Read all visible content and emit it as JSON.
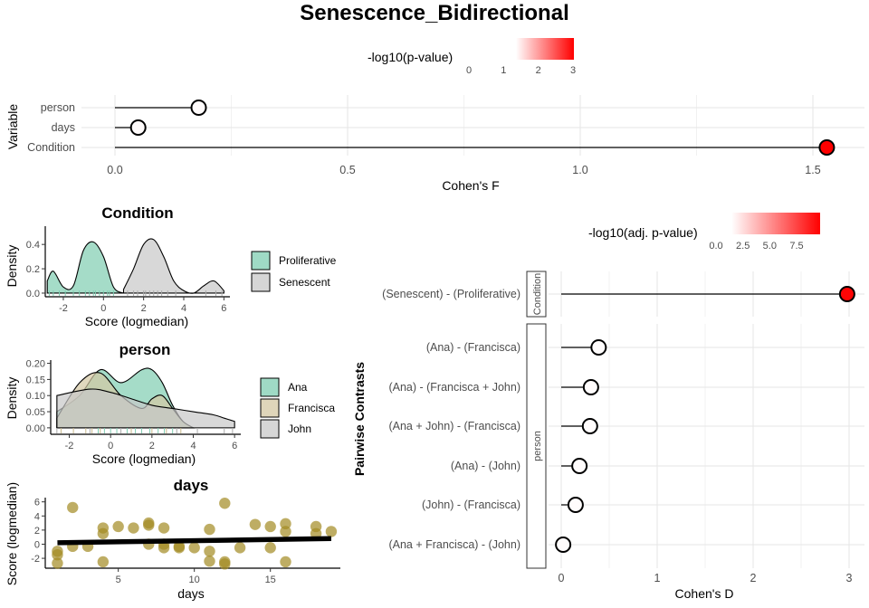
{
  "title": "Senescence_Bidirectional",
  "colors": {
    "sig_low": "#ffffff",
    "sig_high": "#ff0000",
    "fill_a": "#7fcdb1",
    "fill_b": "#c8c8c8",
    "fill_c": "#d4c7a3",
    "points": "#a28a22"
  },
  "anova_panel": {
    "ylabel": "Variable",
    "xlabel": "Cohen's F",
    "legend_title": "-log10(p-value)",
    "legend_ticks": [
      "0",
      "1",
      "2",
      "3"
    ],
    "x_ticks": [
      "0.0",
      "0.5",
      "1.0",
      "1.5"
    ],
    "xlim": [
      -0.07,
      1.58
    ],
    "sig_range": [
      0,
      3
    ],
    "chart_data": {
      "type": "lollipop",
      "categories": [
        "person",
        "days",
        "Condition"
      ],
      "values": [
        0.18,
        0.05,
        1.53
      ],
      "neg_log10_p": [
        0.05,
        0.05,
        3.0
      ]
    }
  },
  "density_condition": {
    "title": "Condition",
    "xlabel": "Score (logmedian)",
    "ylabel": "Density",
    "x_ticks": [
      "-2",
      "0",
      "2",
      "4",
      "6"
    ],
    "y_ticks": [
      "0.0",
      "0.2",
      "0.4"
    ],
    "legend": [
      "Proliferative",
      "Senescent"
    ],
    "chart_data": {
      "type": "area",
      "x": [
        -2.8,
        -2.5,
        -2.0,
        -1.5,
        -1.0,
        -0.5,
        0.0,
        0.5,
        1.0
      ],
      "series": [
        {
          "name": "Proliferative",
          "x": [
            -2.8,
            -2.5,
            -2.0,
            -1.5,
            -1.0,
            -0.5,
            0.0,
            0.5,
            1.0
          ],
          "values": [
            0.1,
            0.18,
            0.05,
            0.06,
            0.35,
            0.42,
            0.3,
            0.05,
            0.0
          ]
        },
        {
          "name": "Senescent",
          "x": [
            1.0,
            1.5,
            2.0,
            2.5,
            3.0,
            3.5,
            4.0,
            4.5,
            5.0,
            5.5,
            6.0
          ],
          "values": [
            0.03,
            0.2,
            0.4,
            0.44,
            0.3,
            0.1,
            0.02,
            0.0,
            0.06,
            0.1,
            0.02
          ]
        }
      ],
      "ylim": [
        -0.03,
        0.55
      ],
      "xlim": [
        -2.9,
        6.3
      ]
    }
  },
  "density_person": {
    "title": "person",
    "xlabel": "Score (logmedian)",
    "ylabel": "Density",
    "x_ticks": [
      "-2",
      "0",
      "2",
      "4",
      "6"
    ],
    "y_ticks": [
      "0.00",
      "0.05",
      "0.10",
      "0.15",
      "0.20"
    ],
    "legend": [
      "Ana",
      "Francisca",
      "John"
    ],
    "chart_data": {
      "type": "area",
      "series": [
        {
          "name": "Ana",
          "x": [
            -2.6,
            -1.5,
            -0.5,
            0.5,
            1.5,
            2.0,
            2.5,
            3.0,
            3.5,
            4.0
          ],
          "values": [
            0.05,
            0.1,
            0.18,
            0.14,
            0.18,
            0.18,
            0.14,
            0.07,
            0.02,
            0.0
          ]
        },
        {
          "name": "Francisca",
          "x": [
            -2.6,
            -1.5,
            -0.5,
            0.5,
            1.5,
            2.0,
            2.5,
            3.0,
            3.5,
            4.0
          ],
          "values": [
            0.03,
            0.14,
            0.17,
            0.1,
            0.06,
            0.09,
            0.1,
            0.06,
            0.02,
            0.0
          ]
        },
        {
          "name": "John",
          "x": [
            -2.6,
            -1.0,
            0.0,
            1.0,
            2.0,
            3.0,
            4.0,
            5.0,
            5.5,
            6.0
          ],
          "values": [
            0.1,
            0.12,
            0.11,
            0.09,
            0.07,
            0.06,
            0.05,
            0.04,
            0.03,
            0.02
          ]
        }
      ],
      "ylim": [
        -0.02,
        0.21
      ],
      "xlim": [
        -2.9,
        6.3
      ]
    }
  },
  "scatter_days": {
    "title": "days",
    "xlabel": "days",
    "ylabel": "Score (logmedian)",
    "x_ticks": [
      "5",
      "10",
      "15"
    ],
    "y_ticks": [
      "-2",
      "0",
      "2",
      "4",
      "6"
    ],
    "chart_data": {
      "type": "scatter",
      "x": [
        1,
        1,
        1,
        2,
        2,
        3,
        4,
        4,
        4,
        5,
        6,
        7,
        7,
        7,
        8,
        8,
        8,
        9,
        9,
        10,
        11,
        11,
        11,
        12,
        12,
        12,
        13,
        14,
        15,
        15,
        16,
        16,
        16,
        18,
        18,
        19
      ],
      "y": [
        -1.0,
        -1.5,
        -2.7,
        5.2,
        -0.3,
        -0.3,
        2.3,
        1.5,
        -2.5,
        2.5,
        2.3,
        3.0,
        2.7,
        0.0,
        -0.5,
        0.0,
        2.3,
        -0.5,
        -0.3,
        -0.5,
        2.1,
        -1.0,
        -2.4,
        5.8,
        -2.5,
        -2.8,
        -0.5,
        2.8,
        -0.5,
        2.5,
        2.9,
        1.8,
        -2.5,
        2.5,
        1.5,
        1.8
      ],
      "trend": {
        "x": [
          1,
          19
        ],
        "y": [
          0.2,
          0.8
        ]
      },
      "xlim": [
        0.2,
        19.6
      ],
      "ylim": [
        -3.4,
        6.6
      ]
    }
  },
  "contrasts_panel": {
    "ylabel": "Pairwise Contrasts",
    "xlabel": "Cohen's D",
    "legend_title": "-log10(adj. p-value)",
    "legend_ticks": [
      "0.0",
      "2.5",
      "5.0",
      "7.5"
    ],
    "x_ticks": [
      "0",
      "1",
      "2",
      "3"
    ],
    "xlim": [
      -0.35,
      3.15
    ],
    "sig_range": [
      0,
      9.5
    ],
    "strip_condition": "Condition",
    "strip_person": "person",
    "chart_data": {
      "type": "lollipop",
      "groups": [
        {
          "name": "Condition",
          "categories": [
            "(Senescent) - (Proliferative)"
          ],
          "values": [
            2.98
          ],
          "neg_log10_p": [
            9.3
          ]
        },
        {
          "name": "person",
          "categories": [
            "(Ana) - (Francisca)",
            "(Ana) - (Francisca + John)",
            "(Ana + John) - (Francisca)",
            "(Ana) - (John)",
            "(John) - (Francisca)",
            "(Ana + Francisca) - (John)"
          ],
          "values": [
            0.39,
            0.31,
            0.3,
            0.19,
            0.15,
            0.02
          ],
          "neg_log10_p": [
            0.1,
            0.1,
            0.1,
            0.1,
            0.1,
            0.1
          ]
        }
      ]
    }
  }
}
